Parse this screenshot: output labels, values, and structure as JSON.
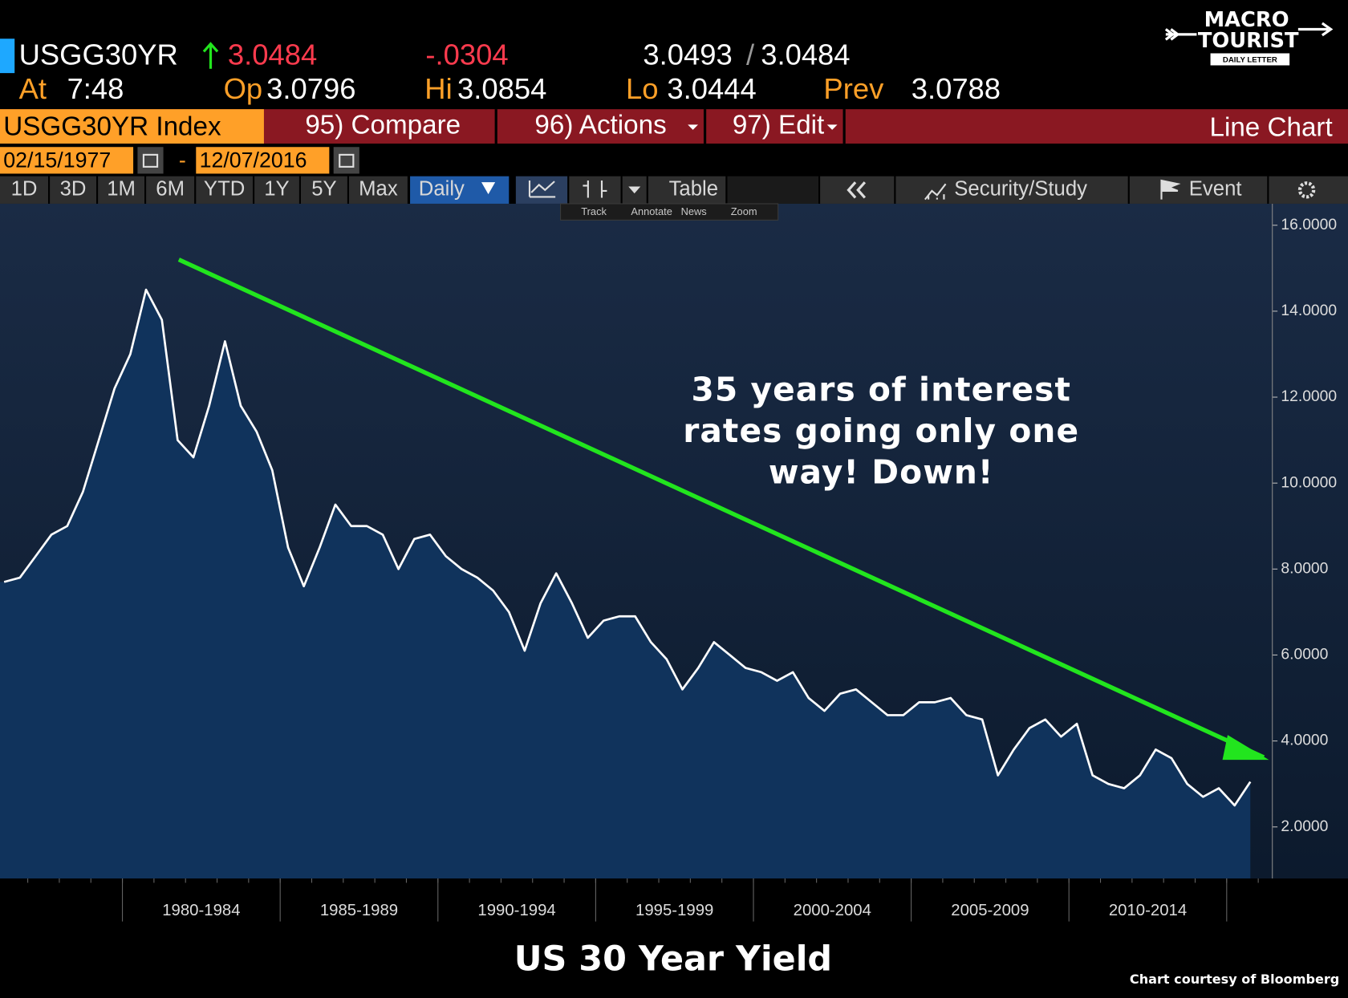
{
  "header": {
    "ticker": "USGG30YR",
    "last": "3.0484",
    "change": "-.0304",
    "bid": "3.0493",
    "separator": "/",
    "ask": "3.0484",
    "at_label": "At",
    "time": "7:48",
    "open_label": "Op",
    "open": "3.0796",
    "high_label": "Hi",
    "high": "3.0854",
    "low_label": "Lo",
    "low": "3.0444",
    "prev_label": "Prev",
    "prev": "3.0788"
  },
  "logo": {
    "line1": "MACRO",
    "line2": "TOURIST",
    "tagline": "DAILY LETTER"
  },
  "toolbar": {
    "security": "USGG30YR Index",
    "compare": "95) Compare",
    "actions": "96) Actions",
    "edit": "97) Edit",
    "view": "Line Chart",
    "start_date": "02/15/1977",
    "date_separator": "-",
    "end_date": "12/07/2016",
    "ranges": [
      "1D",
      "3D",
      "1M",
      "6M",
      "YTD",
      "1Y",
      "5Y",
      "Max"
    ],
    "frequency": "Daily",
    "table": "Table",
    "study": "Security/Study",
    "event": "Event",
    "tools": [
      "Track",
      "Annotate",
      "News",
      "Zoom"
    ]
  },
  "chart_data": {
    "type": "area",
    "title": "US 30 Year Yield",
    "source": "Chart courtesy of Bloomberg",
    "annotation": [
      "35 years of interest",
      "rates going only one",
      "way! Down!"
    ],
    "x_period_labels": [
      "1980-1984",
      "1985-1989",
      "1990-1994",
      "1995-1999",
      "2000-2004",
      "2005-2009",
      "2010-2014"
    ],
    "line_color": "#ffffff",
    "fill_color": "#10335c",
    "values": [
      7.7,
      7.8,
      8.3,
      8.8,
      9.0,
      9.8,
      11.0,
      12.2,
      13.0,
      14.5,
      13.8,
      11.0,
      10.6,
      11.8,
      13.3,
      11.8,
      11.2,
      10.3,
      8.5,
      7.6,
      8.5,
      9.5,
      9.0,
      9.0,
      8.8,
      8.0,
      8.7,
      8.8,
      8.3,
      8.0,
      7.8,
      7.5,
      7.0,
      6.1,
      7.2,
      7.9,
      7.2,
      6.4,
      6.8,
      6.9,
      6.9,
      6.3,
      5.9,
      5.2,
      5.7,
      6.3,
      6.0,
      5.7,
      5.6,
      5.4,
      5.6,
      5.0,
      4.7,
      5.1,
      5.2,
      4.9,
      4.6,
      4.6,
      4.9,
      4.9,
      5.0,
      4.6,
      4.5,
      3.2,
      3.8,
      4.3,
      4.5,
      4.1,
      4.4,
      3.2,
      3.0,
      2.9,
      3.2,
      3.8,
      3.6,
      3.0,
      2.7,
      2.9,
      2.5,
      3.05
    ],
    "ylim": [
      0.8,
      16.5
    ],
    "yticks": [
      {
        "value": 2,
        "label": "2.0000"
      },
      {
        "value": 4,
        "label": "4.0000"
      },
      {
        "value": 6,
        "label": "6.0000"
      },
      {
        "value": 8,
        "label": "8.0000"
      },
      {
        "value": 10,
        "label": "10.0000"
      },
      {
        "value": 12,
        "label": "12.0000"
      },
      {
        "value": 14,
        "label": "14.0000"
      },
      {
        "value": 16,
        "label": "16.0000"
      }
    ]
  }
}
